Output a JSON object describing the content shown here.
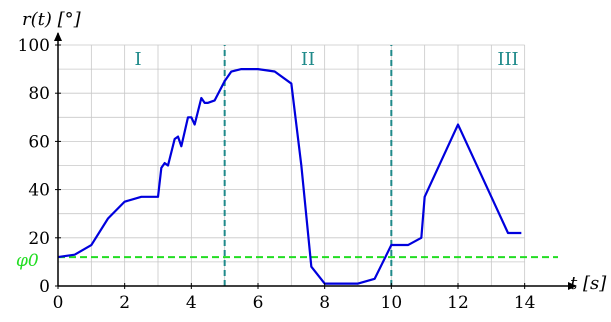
{
  "chart_data": {
    "type": "line",
    "xlabel": "t [s]",
    "ylabel": "r(t) [°]",
    "xlim": [
      0,
      15
    ],
    "ylim": [
      0,
      100
    ],
    "x_ticks": [
      "0",
      "2",
      "4",
      "6",
      "8",
      "10",
      "12",
      "14"
    ],
    "y_ticks": [
      "0",
      "20",
      "40",
      "60",
      "80",
      "100"
    ],
    "grid": true,
    "phase_lines": [
      5,
      10
    ],
    "phase_labels": [
      {
        "label": "I",
        "x": 2.4
      },
      {
        "label": "II",
        "x": 7.5
      },
      {
        "label": "III",
        "x": 13.5
      }
    ],
    "reference": {
      "label": "φ0",
      "value": 12
    },
    "series": [
      {
        "color": "#0000dd",
        "x": [
          0,
          0.5,
          1.0,
          1.5,
          2.0,
          2.5,
          3.0,
          3.1,
          3.2,
          3.3,
          3.5,
          3.6,
          3.7,
          3.9,
          4.0,
          4.1,
          4.3,
          4.4,
          4.5,
          4.7,
          5.0,
          5.2,
          5.5,
          6.0,
          6.5,
          7.0,
          7.3,
          7.6,
          8.0,
          9.0,
          9.5,
          10.0,
          10.5,
          10.9,
          11.0,
          11.5,
          12.0,
          12.5,
          13.0,
          13.5,
          13.9
        ],
        "values": [
          12,
          13,
          17,
          28,
          35,
          37,
          37,
          49,
          51,
          50,
          61,
          62,
          58,
          70,
          70,
          67,
          78,
          76,
          76,
          77,
          85,
          89,
          90,
          90,
          89,
          84,
          50,
          8,
          1,
          1,
          3,
          17,
          17,
          20,
          37,
          52,
          67,
          52,
          37,
          22,
          22
        ]
      }
    ]
  }
}
